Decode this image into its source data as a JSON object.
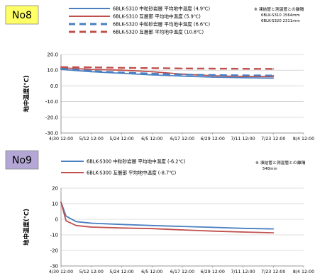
{
  "chart_data": [
    {
      "type": "line",
      "badge": "No8",
      "badge_color": "#ffff66",
      "ylabel": "地中温度(℃)",
      "ylim": [
        -30,
        20
      ],
      "yticks": [
        "20.0",
        "10.0",
        "0.0",
        "-10.0",
        "-20.0",
        "-30.0"
      ],
      "x_ticks": [
        "4/30 12:00",
        "5/12 12:00",
        "5/24 12:00",
        "6/5 12:00",
        "6/17 12:00",
        "6/29 12:00",
        "7/11 12:00",
        "7/23 12:00",
        "8/4 12:00"
      ],
      "note": [
        "※ 凍結管と測温管との離隔",
        "6BLK-S310 1564mm",
        "6BLK-S320 2311mm"
      ],
      "series": [
        {
          "name": "6BLK-S310 中粒砂岩層 平均地中温度 (4.9℃)",
          "color": "#4a7fc1",
          "style": "solid",
          "x": [
            "4/30",
            "5/12",
            "5/24",
            "6/5",
            "6/17",
            "6/29",
            "7/11",
            "7/23"
          ],
          "values": [
            10.5,
            9.0,
            8.0,
            7.0,
            6.2,
            5.6,
            5.2,
            4.9
          ]
        },
        {
          "name": "6BLK-S310 互層部 平均地中温度 (5.9℃)",
          "color": "#c0504d",
          "style": "solid",
          "x": [
            "4/30",
            "5/12",
            "5/24",
            "6/5",
            "6/17",
            "6/29",
            "7/11",
            "7/23"
          ],
          "values": [
            11.5,
            10.5,
            10.0,
            9.0,
            7.5,
            6.5,
            6.0,
            5.9
          ]
        },
        {
          "name": "6BLK-S320 中粒砂岩層 平均地中温度 (6.6℃)",
          "color": "#4a7fc1",
          "style": "dashed",
          "x": [
            "4/30",
            "5/12",
            "5/24",
            "6/5",
            "6/17",
            "6/29",
            "7/11",
            "7/23"
          ],
          "values": [
            11.0,
            9.5,
            8.5,
            7.8,
            7.2,
            6.9,
            6.7,
            6.6
          ]
        },
        {
          "name": "6BLK-S320 互層部 平均地中温度 (10.8℃)",
          "color": "#c0504d",
          "style": "dashed",
          "x": [
            "4/30",
            "5/12",
            "5/24",
            "6/5",
            "6/17",
            "6/29",
            "7/11",
            "7/23"
          ],
          "values": [
            12.0,
            11.8,
            11.5,
            11.3,
            11.1,
            11.0,
            10.9,
            10.8
          ]
        }
      ]
    },
    {
      "type": "line",
      "badge": "No9",
      "badge_color": "#b4a7d6",
      "ylabel": "地中温度(℃)",
      "ylim": [
        -30,
        20
      ],
      "yticks": [
        "20",
        "10",
        "0",
        "-10",
        "-20",
        "-30"
      ],
      "x_ticks": [
        "4/30 12:00",
        "5/12 12:00",
        "5/24 12:00",
        "6/5 12:00",
        "6/17 12:00",
        "6/29 12:00",
        "7/11 12:00",
        "7/23 12:00",
        "8/4 12:00"
      ],
      "note": [
        "※ 凍結管と測温管との離隔",
        "548mm"
      ],
      "series": [
        {
          "name": "6BLK-S300 中粒砂岩層 平均地中温度 (-6.2℃)",
          "color": "#4a7fc1",
          "style": "solid",
          "x": [
            "4/30",
            "5/2",
            "5/6",
            "5/12",
            "5/24",
            "6/5",
            "6/17",
            "6/29",
            "7/11",
            "7/23"
          ],
          "values": [
            11.0,
            2.0,
            -1.5,
            -2.5,
            -3.3,
            -4.0,
            -4.6,
            -5.2,
            -5.8,
            -6.2
          ]
        },
        {
          "name": "6BLK-S300 互層部 平均地中温度 (-8.7℃)",
          "color": "#c0504d",
          "style": "solid",
          "x": [
            "4/30",
            "5/2",
            "5/6",
            "5/12",
            "5/24",
            "6/5",
            "6/17",
            "6/29",
            "7/11",
            "7/23"
          ],
          "values": [
            11.0,
            -1.0,
            -4.0,
            -5.0,
            -5.6,
            -6.0,
            -6.8,
            -7.6,
            -8.2,
            -8.7
          ]
        }
      ]
    }
  ]
}
